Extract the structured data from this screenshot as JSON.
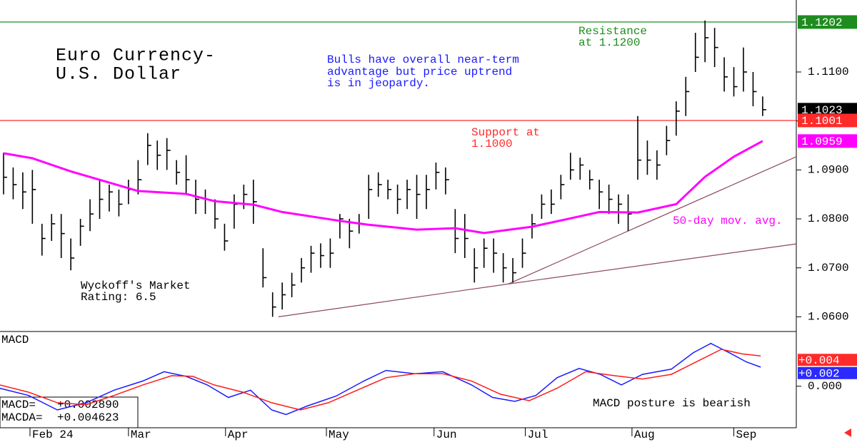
{
  "chart_data": [
    {
      "type": "ohlc",
      "title": [
        "Euro Currency-",
        "U.S. Dollar"
      ],
      "color": "#000000",
      "xlim": [
        -0.37,
        82.5
      ],
      "ylim": [
        1.057,
        1.1247
      ],
      "yticks": [
        {
          "value": 1.06,
          "label": "1.0600"
        },
        {
          "value": 1.07,
          "label": "1.0700"
        },
        {
          "value": 1.08,
          "label": "1.0800"
        },
        {
          "value": 1.09,
          "label": "1.0900"
        },
        {
          "value": 1.1,
          "label": "1.1000"
        },
        {
          "value": 1.11,
          "label": "1.1100"
        }
      ],
      "close": [
        1.0885,
        1.087,
        1.0855,
        1.086,
        1.076,
        1.079,
        1.077,
        1.072,
        1.0785,
        1.081,
        1.084,
        1.0855,
        1.083,
        1.086,
        1.088,
        1.095,
        1.093,
        1.094,
        1.0895,
        1.088,
        1.084,
        1.084,
        1.08,
        1.0755,
        1.083,
        1.085,
        1.0835,
        1.068,
        1.062,
        1.0645,
        1.0665,
        1.07,
        1.073,
        1.0725,
        1.073,
        1.08,
        1.0775,
        1.079,
        1.086,
        1.087,
        1.086,
        1.084,
        1.086,
        1.085,
        1.086,
        1.0895,
        1.088,
        1.076,
        1.076,
        1.07,
        1.074,
        1.073,
        1.07,
        1.069,
        1.073,
        1.079,
        1.083,
        1.083,
        1.087,
        1.09,
        1.091,
        1.088,
        1.0855,
        1.084,
        1.083,
        1.081,
        1.092,
        1.092,
        1.091,
        1.096,
        1.102,
        1.106,
        1.113,
        1.117,
        1.115,
        1.109,
        1.107,
        1.11,
        1.106,
        1.1023
      ],
      "high": [
        1.0935,
        1.0905,
        1.0895,
        1.09,
        1.079,
        1.081,
        1.081,
        1.076,
        1.08,
        1.084,
        1.088,
        1.087,
        1.086,
        1.088,
        1.092,
        1.0975,
        1.096,
        1.0965,
        1.092,
        1.093,
        1.088,
        1.086,
        1.084,
        1.079,
        1.085,
        1.087,
        1.088,
        1.074,
        1.065,
        1.067,
        1.069,
        1.072,
        1.0745,
        1.075,
        1.076,
        1.081,
        1.08,
        1.081,
        1.089,
        1.0895,
        1.088,
        1.087,
        1.088,
        1.089,
        1.089,
        1.0915,
        1.0905,
        1.082,
        1.081,
        1.074,
        1.076,
        1.076,
        1.073,
        1.072,
        1.076,
        1.081,
        1.085,
        1.086,
        1.089,
        1.0935,
        1.0925,
        1.09,
        1.088,
        1.087,
        1.085,
        1.085,
        1.101,
        1.096,
        1.094,
        1.099,
        1.104,
        1.109,
        1.118,
        1.1205,
        1.119,
        1.113,
        1.111,
        1.115,
        1.11,
        1.105
      ],
      "low": [
        1.085,
        1.084,
        1.082,
        1.079,
        1.0725,
        1.0755,
        1.072,
        1.0695,
        1.0745,
        1.0775,
        1.08,
        1.0815,
        1.0805,
        1.083,
        1.085,
        1.091,
        1.09,
        1.09,
        1.087,
        1.085,
        1.081,
        1.081,
        1.078,
        1.0735,
        1.078,
        1.082,
        1.079,
        1.066,
        1.06,
        1.0615,
        1.064,
        1.067,
        1.069,
        1.07,
        1.07,
        1.076,
        1.074,
        1.077,
        1.08,
        1.0845,
        1.084,
        1.081,
        1.082,
        1.08,
        1.082,
        1.086,
        1.085,
        1.073,
        1.072,
        1.067,
        1.07,
        1.069,
        1.067,
        1.067,
        1.07,
        1.076,
        1.08,
        1.081,
        1.084,
        1.088,
        1.088,
        1.086,
        1.082,
        1.081,
        1.079,
        1.0775,
        1.088,
        1.089,
        1.088,
        1.093,
        1.097,
        1.101,
        1.11,
        1.112,
        1.111,
        1.106,
        1.105,
        1.106,
        1.103,
        1.101
      ],
      "moving_average": {
        "name": "50-day mov. avg.",
        "color": "#ff00ff",
        "x": [
          0,
          3,
          7,
          14,
          19,
          22,
          26,
          29,
          35,
          38,
          43,
          47,
          50,
          55,
          59,
          62,
          66,
          70,
          73,
          76,
          79
        ],
        "values": [
          1.0934,
          1.0924,
          1.0897,
          1.0857,
          1.0851,
          1.0836,
          1.0829,
          1.0814,
          1.0796,
          1.0788,
          1.0778,
          1.0781,
          1.0771,
          1.0784,
          1.0801,
          1.0814,
          1.0813,
          1.083,
          1.0886,
          1.0927,
          1.0959
        ]
      },
      "levels": [
        {
          "name": [
            "Resistance",
            "at 1.1200"
          ],
          "value": 1.1202,
          "color": "#1e8c1e"
        },
        {
          "name": [
            "Support at",
            "1.1000"
          ],
          "value": 1.1001,
          "color": "#ff2a2a"
        }
      ],
      "trendline_color": "#8b4a5a",
      "trendlines": [
        {
          "x": [
            28.6,
            52.5
          ],
          "values": [
            1.06,
            1.0667
          ]
        },
        {
          "x": [
            52.5,
            82.5
          ],
          "values": [
            1.0667,
            1.0927
          ]
        },
        {
          "x": [
            52.5,
            82.5
          ],
          "values": [
            1.0667,
            1.0749
          ]
        }
      ],
      "price_tags": [
        {
          "value": 1.1202,
          "color": "#1e8c1e"
        },
        {
          "value": 1.1023,
          "color": "#000000"
        },
        {
          "value": 1.1001,
          "color": "#ff2a2a"
        },
        {
          "value": 1.0959,
          "color": "#ff00ff"
        }
      ],
      "annotations": [
        [
          "Bulls have overall near-term",
          "advantage but price uptrend",
          "is in jeopardy."
        ],
        [
          "Wyckoff's Market",
          "Rating: 6.5"
        ]
      ]
    },
    {
      "type": "line",
      "title": "MACD",
      "xlim": [
        -0.37,
        82.5
      ],
      "ylim": [
        -0.0063,
        0.0082
      ],
      "yticks": [
        {
          "value": 0,
          "label": "0.000"
        }
      ],
      "xticks": [
        {
          "value": 2.75,
          "label": "Feb 24"
        },
        {
          "value": 13,
          "label": "Mar"
        },
        {
          "value": 23.1,
          "label": "Apr"
        },
        {
          "value": 33.6,
          "label": "May"
        },
        {
          "value": 44.8,
          "label": "Jun"
        },
        {
          "value": 54.3,
          "label": "Jul"
        },
        {
          "value": 65.4,
          "label": "Aug"
        },
        {
          "value": 76,
          "label": "Sep"
        }
      ],
      "series": [
        {
          "name": "MACD=",
          "readout": "+0.002890",
          "color": "#1a1aff",
          "x": [
            -0.4,
            2.6,
            5.6,
            8.6,
            11.5,
            14.5,
            16.7,
            19,
            21.2,
            23.4,
            25.7,
            27.9,
            29.4,
            31.6,
            34.6,
            37.5,
            39.8,
            42.8,
            45.7,
            48.7,
            50.9,
            53.2,
            55.4,
            57.6,
            59.9,
            62.1,
            64.3,
            66.5,
            69.5,
            71.8,
            73.6,
            75.5,
            77.3,
            78.8
          ],
          "values": [
            -0.0003,
            -0.0014,
            -0.0036,
            -0.0025,
            -0.0006,
            0.0008,
            0.0022,
            0.0015,
            0.0002,
            -0.0017,
            -0.0006,
            -0.0036,
            -0.0043,
            -0.003,
            -0.0015,
            0.0008,
            0.0024,
            0.0019,
            0.0022,
            0.0002,
            -0.0017,
            -0.0023,
            -0.0014,
            0.0013,
            0.0027,
            0.0018,
            0.0002,
            0.0018,
            0.0026,
            0.0051,
            0.0065,
            0.0051,
            0.0037,
            0.0029
          ]
        },
        {
          "name": "MACDA=",
          "readout": "+0.004623",
          "color": "#ff1a1a",
          "x": [
            -0.4,
            2.6,
            5.6,
            8.6,
            11.5,
            14.5,
            17.5,
            19.7,
            21.9,
            24.9,
            27.9,
            30.9,
            33.8,
            36.8,
            39.8,
            42.8,
            45.7,
            48.7,
            51.7,
            54.7,
            57.6,
            60.6,
            63.6,
            66.5,
            69.5,
            72.5,
            74.7,
            76.9,
            78.8
          ],
          "values": [
            0.0002,
            -0.0009,
            -0.0025,
            -0.0028,
            -0.0014,
            0.0002,
            0.0016,
            0.0015,
            0.0002,
            -0.0009,
            -0.0025,
            -0.0036,
            -0.0025,
            -0.0006,
            0.0013,
            0.0019,
            0.0019,
            0.0008,
            -0.0012,
            -0.0022,
            -0.0003,
            0.0022,
            0.0016,
            0.0011,
            0.0018,
            0.004,
            0.0056,
            0.0049,
            0.0046
          ]
        }
      ],
      "tags": [
        {
          "value": 0.004,
          "label": "+0.004",
          "color": "#ff2a2a"
        },
        {
          "value": 0.002,
          "label": "+0.002",
          "color": "#2a2aff"
        }
      ],
      "annotation": "MACD posture is bearish"
    }
  ]
}
